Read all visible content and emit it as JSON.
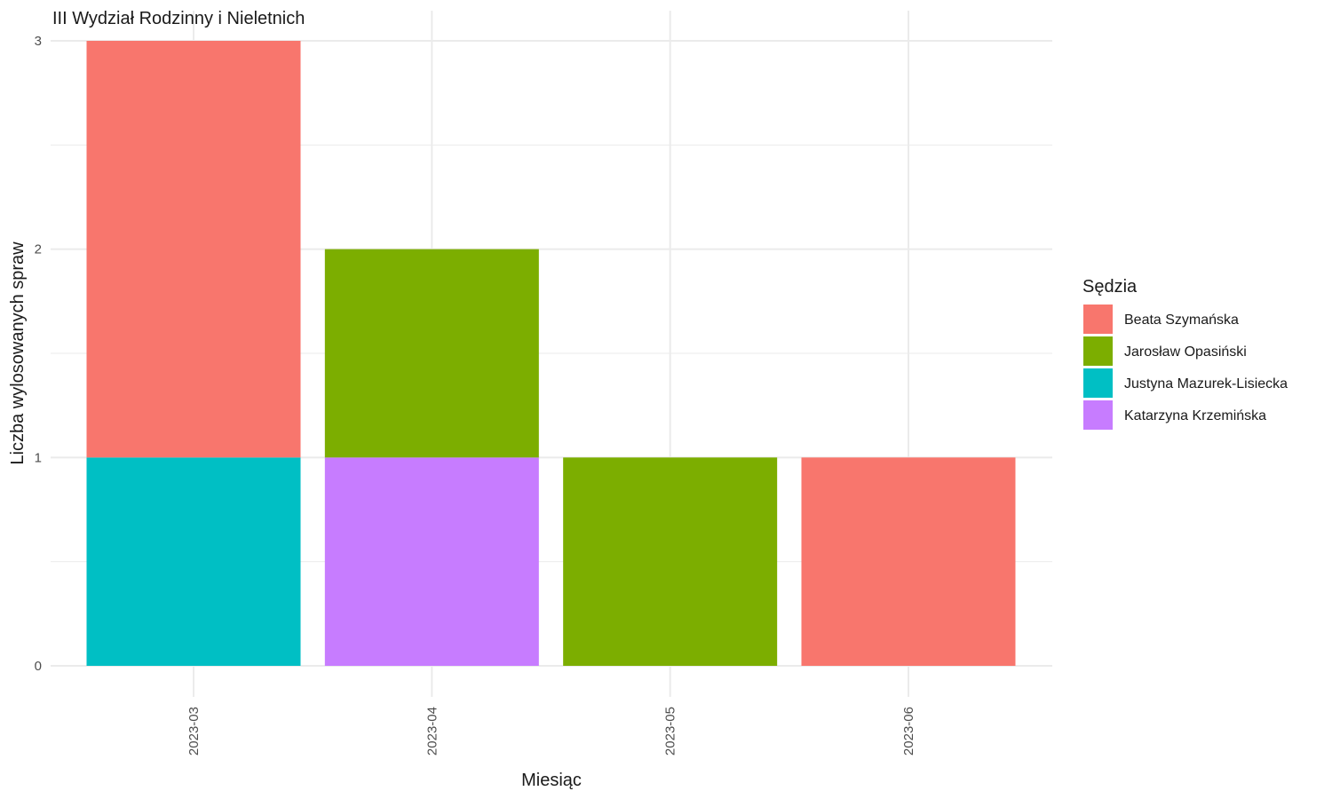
{
  "chart_data": {
    "type": "bar",
    "stacked": true,
    "title": "III Wydział Rodzinny i Nieletnich",
    "xlabel": "Miesiąc",
    "ylabel": "Liczba wylosowanych spraw",
    "categories": [
      "2023-03",
      "2023-04",
      "2023-05",
      "2023-06"
    ],
    "ylim": [
      0,
      3
    ],
    "yticks": [
      0,
      1,
      2,
      3
    ],
    "grid": true,
    "legend": {
      "title": "Sędzia",
      "placement": "right"
    },
    "series": [
      {
        "name": "Beata Szymańska",
        "color": "#F8766D",
        "values": [
          2,
          0,
          0,
          1
        ]
      },
      {
        "name": "Jarosław Opasiński",
        "color": "#7CAE00",
        "values": [
          0,
          1,
          1,
          0
        ]
      },
      {
        "name": "Justyna Mazurek-Lisiecka",
        "color": "#00BFC4",
        "values": [
          1,
          0,
          0,
          0
        ]
      },
      {
        "name": "Katarzyna Krzemińska",
        "color": "#C77CFF",
        "values": [
          0,
          1,
          0,
          0
        ]
      }
    ],
    "stack_order": [
      "Justyna Mazurek-Lisiecka",
      "Katarzyna Krzemińska",
      "Jarosław Opasiński",
      "Beata Szymańska"
    ]
  }
}
